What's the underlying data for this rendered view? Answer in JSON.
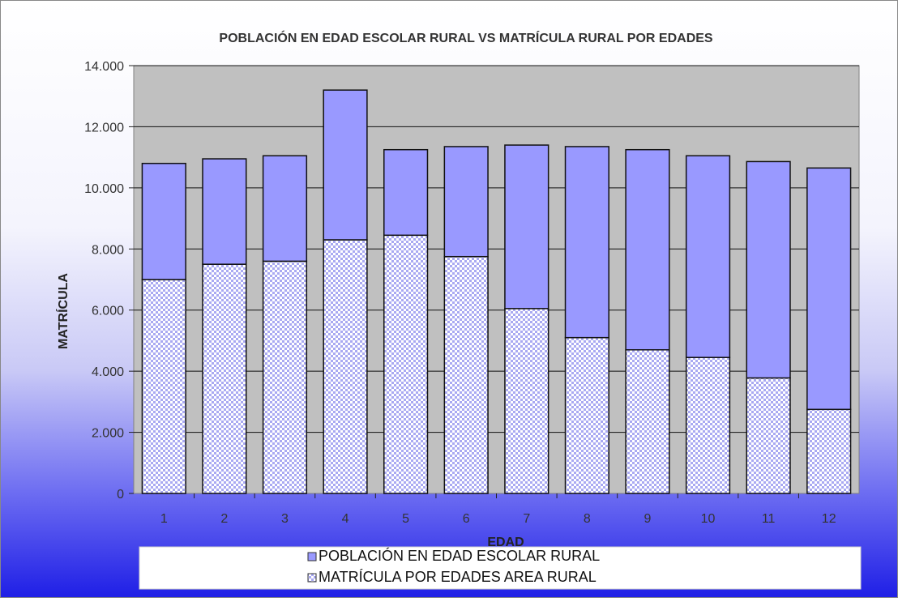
{
  "chart_data": {
    "type": "bar",
    "stacked": true,
    "title": "POBLACIÓN EN EDAD ESCOLAR RURAL VS MATRÍCULA RURAL POR EDADES",
    "xlabel": "EDAD",
    "ylabel": "MATRÍCULA",
    "categories": [
      "1",
      "2",
      "3",
      "4",
      "5",
      "6",
      "7",
      "8",
      "9",
      "10",
      "11",
      "12"
    ],
    "ylim": [
      0,
      14000
    ],
    "yticks": [
      0,
      2000,
      4000,
      6000,
      8000,
      10000,
      12000,
      14000
    ],
    "ytick_labels": [
      "0",
      "2.000",
      "4.000",
      "6.000",
      "8.000",
      "10.000",
      "12.000",
      "14.000"
    ],
    "grid": true,
    "legend_position": "bottom",
    "series": [
      {
        "name": "MATRÍCULA POR EDADES AREA RURAL",
        "values": [
          7000,
          7500,
          7600,
          8300,
          8450,
          7750,
          6050,
          5100,
          4700,
          4450,
          3780,
          2750
        ],
        "color": "#e6e6fa",
        "pattern": "dotted"
      },
      {
        "name": "POBLACIÓN EN EDAD ESCOLAR RURAL",
        "values": [
          3800,
          3450,
          3450,
          4900,
          2800,
          3600,
          5350,
          6250,
          6550,
          6600,
          7080,
          7900
        ],
        "color": "#9999ff",
        "pattern": "solid"
      }
    ],
    "legend_order": [
      "POBLACIÓN EN EDAD ESCOLAR RURAL",
      "MATRÍCULA POR EDADES AREA RURAL"
    ]
  }
}
